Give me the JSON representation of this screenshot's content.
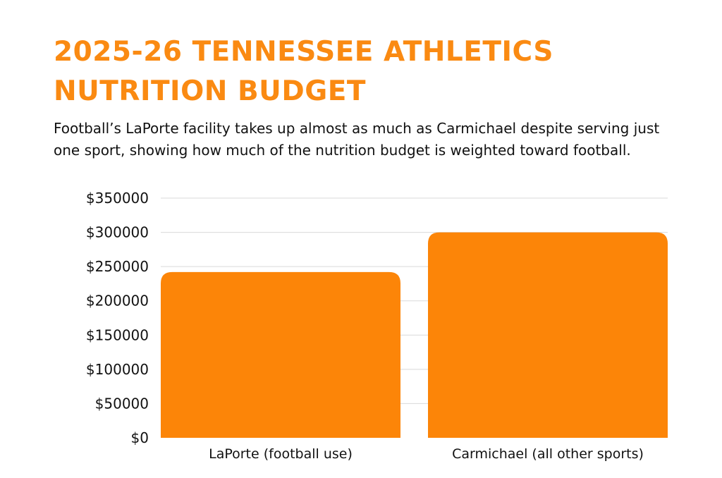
{
  "title": "2025-26 Tennessee Athletics Nutrition Budget",
  "subtitle": "Football’s LaPorte facility takes up almost as much as Carmichael despite serving just one sport, showing how much of the nutrition budget is weighted toward football.",
  "colors": {
    "title": "#FA8A12",
    "bar": "#FC8508",
    "grid": "#D9D9D9",
    "text": "#111111"
  },
  "chart_data": {
    "type": "bar",
    "categories": [
      "LaPorte (football use)",
      "Carmichael (all other sports)"
    ],
    "values": [
      242000,
      300000
    ],
    "ylim": [
      0,
      350000
    ],
    "yticks": [
      0,
      50000,
      100000,
      150000,
      200000,
      250000,
      300000,
      350000
    ],
    "ytick_labels": [
      "$0",
      "$50000",
      "$100000",
      "$150000",
      "$200000",
      "$250000",
      "$300000",
      "$350000"
    ],
    "xlabel": "",
    "ylabel": "",
    "grid": true,
    "legend": "none"
  }
}
